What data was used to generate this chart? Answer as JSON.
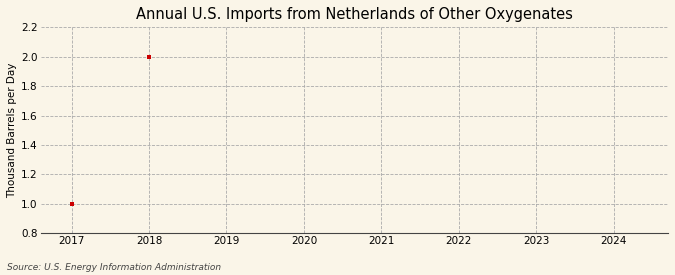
{
  "title": "Annual U.S. Imports from Netherlands of Other Oxygenates",
  "ylabel": "Thousand Barrels per Day",
  "source_text": "Source: U.S. Energy Information Administration",
  "x_data": [
    2017,
    2018
  ],
  "y_data": [
    1.0,
    2.0
  ],
  "x_min": 2016.6,
  "x_max": 2024.7,
  "y_min": 0.8,
  "y_max": 2.2,
  "x_ticks": [
    2017,
    2018,
    2019,
    2020,
    2021,
    2022,
    2023,
    2024
  ],
  "y_ticks": [
    0.8,
    1.0,
    1.2,
    1.4,
    1.6,
    1.8,
    2.0,
    2.2
  ],
  "marker_color": "#cc0000",
  "marker": "s",
  "marker_size": 3,
  "background_color": "#faf5e8",
  "grid_color": "#aaaaaa",
  "title_fontsize": 10.5,
  "label_fontsize": 7.5,
  "tick_fontsize": 7.5,
  "source_fontsize": 6.5
}
